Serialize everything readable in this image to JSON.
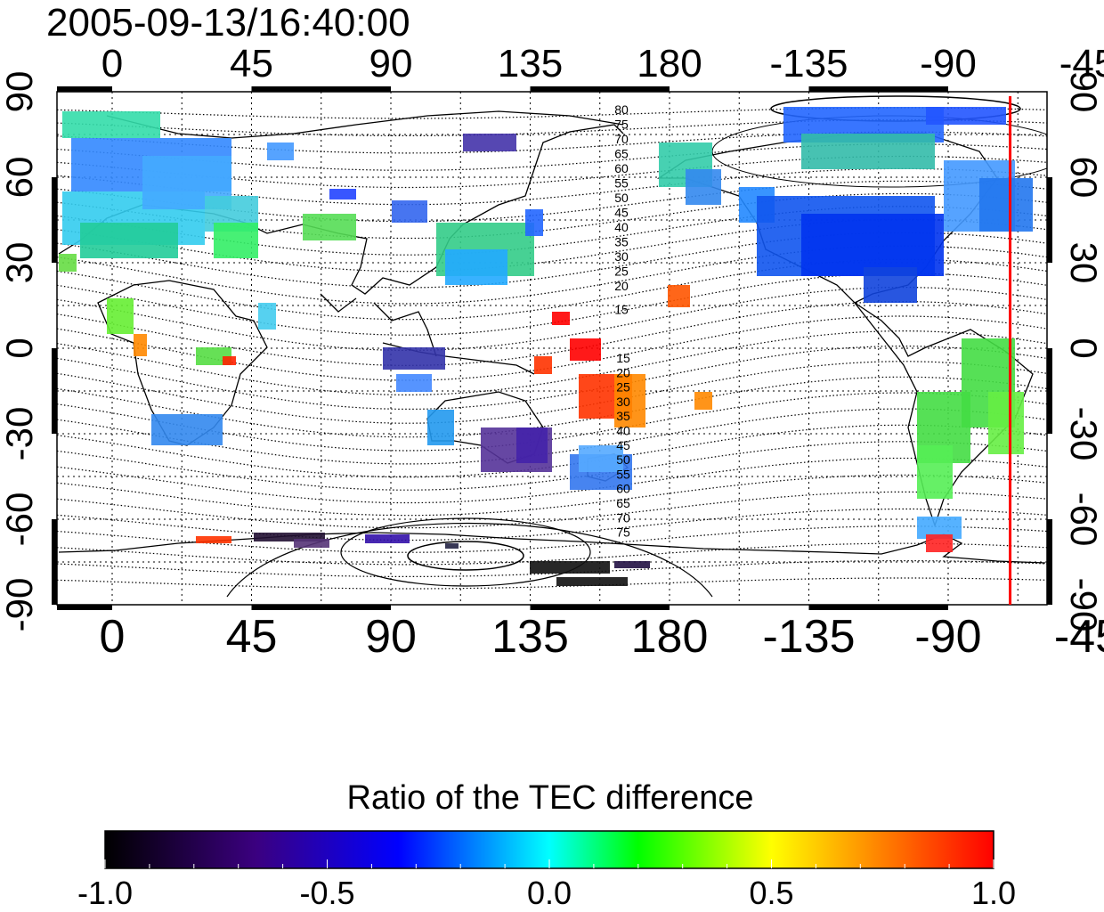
{
  "title": "2005-09-13/16:40:00",
  "map": {
    "x_ticks": [
      "0",
      "45",
      "90",
      "135",
      "180",
      "-135",
      "-90",
      "-45"
    ],
    "y_ticks": [
      "90",
      "60",
      "30",
      "0",
      "-30",
      "-60",
      "-90"
    ],
    "meridian_marker_longitude": -70,
    "meridian_marker_color": "#ff0000",
    "contour_labels_north": [
      "80",
      "75",
      "70",
      "65",
      "60",
      "55",
      "50",
      "45",
      "40",
      "35",
      "30",
      "25",
      "20",
      "15"
    ],
    "contour_labels_south": [
      "15",
      "20",
      "25",
      "30",
      "35",
      "40",
      "45",
      "50",
      "55",
      "60",
      "65",
      "70",
      "75"
    ]
  },
  "colorbar": {
    "title": "Ratio of the TEC difference",
    "tick_labels": [
      "-1.0",
      "-0.5",
      "0.0",
      "0.5",
      "1.0"
    ],
    "range": [
      -1.0,
      1.0
    ],
    "colors": [
      "#000000",
      "#3b0080",
      "#0000ff",
      "#00ffff",
      "#00ff00",
      "#ffff00",
      "#ff0000"
    ]
  }
}
